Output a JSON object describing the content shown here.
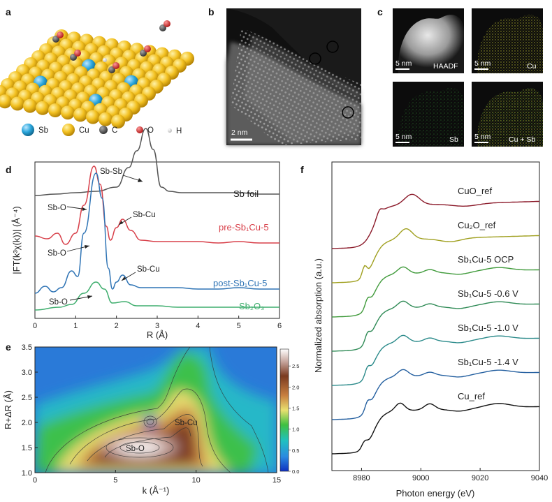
{
  "panel_labels": {
    "a": "a",
    "b": "b",
    "c": "c",
    "d": "d",
    "e": "e",
    "f": "f"
  },
  "panel_a": {
    "legend": [
      {
        "label": "Sb",
        "color": "#2aa6dc"
      },
      {
        "label": "Cu",
        "color": "#f2c020"
      },
      {
        "label": "C",
        "color": "#555555"
      },
      {
        "label": "O",
        "color": "#d8262c"
      },
      {
        "label": "H",
        "color": "#dddddd"
      }
    ]
  },
  "panel_b": {
    "scale_bar": "2 nm"
  },
  "panel_c": {
    "tiles": [
      {
        "scale": "5 nm",
        "label": "HAADF"
      },
      {
        "scale": "5 nm",
        "label": "Cu"
      },
      {
        "scale": "5 nm",
        "label": "Sb"
      },
      {
        "scale": "5 nm",
        "label": "Cu + Sb"
      }
    ]
  },
  "chart_data": [
    {
      "id": "d",
      "type": "line",
      "xlabel": "R (Å)",
      "ylabel": "|FT(k³χ(k))| (Å⁻⁴)",
      "xlim": [
        0,
        6
      ],
      "xticks": [
        0,
        1,
        2,
        3,
        4,
        5,
        6
      ],
      "series": [
        {
          "name": "Sb foil",
          "color": "#555555",
          "offset": 0.8,
          "points": [
            [
              0,
              0.02
            ],
            [
              0.5,
              0.03
            ],
            [
              1.0,
              0.04
            ],
            [
              1.5,
              0.05
            ],
            [
              2.0,
              0.08
            ],
            [
              2.3,
              0.22
            ],
            [
              2.5,
              0.34
            ],
            [
              2.72,
              0.5
            ],
            [
              2.9,
              0.35
            ],
            [
              3.1,
              0.08
            ],
            [
              3.3,
              0.05
            ],
            [
              3.6,
              0.04
            ],
            [
              4.0,
              0.04
            ],
            [
              4.5,
              0.04
            ],
            [
              5.0,
              0.04
            ],
            [
              5.5,
              0.03
            ],
            [
              6.0,
              0.03
            ]
          ]
        },
        {
          "name": "pre-Sb₁Cu-5",
          "color": "#d8404a",
          "offset": 0.45,
          "points": [
            [
              0,
              0.08
            ],
            [
              0.3,
              0.06
            ],
            [
              0.55,
              0.1
            ],
            [
              0.75,
              0.02
            ],
            [
              1.0,
              0.1
            ],
            [
              1.2,
              0.3
            ],
            [
              1.45,
              0.58
            ],
            [
              1.6,
              0.45
            ],
            [
              1.75,
              0.15
            ],
            [
              1.85,
              0.05
            ],
            [
              2.0,
              0.14
            ],
            [
              2.15,
              0.2
            ],
            [
              2.35,
              0.12
            ],
            [
              2.6,
              0.05
            ],
            [
              3.0,
              0.04
            ],
            [
              3.5,
              0.04
            ],
            [
              4.0,
              0.04
            ],
            [
              4.5,
              0.03
            ],
            [
              5.0,
              0.04
            ],
            [
              5.5,
              0.03
            ],
            [
              6.0,
              0.03
            ]
          ]
        },
        {
          "name": "post-Sb₁Cu-5",
          "color": "#2f74b5",
          "offset": 0.1,
          "points": [
            [
              0,
              0.02
            ],
            [
              0.25,
              0.07
            ],
            [
              0.45,
              0.03
            ],
            [
              0.65,
              0.06
            ],
            [
              0.9,
              0.18
            ],
            [
              1.05,
              0.14
            ],
            [
              1.2,
              0.45
            ],
            [
              1.5,
              0.88
            ],
            [
              1.65,
              0.7
            ],
            [
              1.8,
              0.2
            ],
            [
              1.9,
              0.05
            ],
            [
              2.0,
              0.1
            ],
            [
              2.15,
              0.15
            ],
            [
              2.35,
              0.08
            ],
            [
              2.6,
              0.06
            ],
            [
              3.0,
              0.06
            ],
            [
              3.5,
              0.06
            ],
            [
              4.0,
              0.05
            ],
            [
              4.5,
              0.05
            ],
            [
              5.0,
              0.06
            ],
            [
              5.5,
              0.05
            ],
            [
              6.0,
              0.05
            ]
          ]
        },
        {
          "name": "Sb₂O₃",
          "color": "#3fae6e",
          "offset": 0.0,
          "points": [
            [
              0,
              0.0
            ],
            [
              0.6,
              0.02
            ],
            [
              0.9,
              0.04
            ],
            [
              1.2,
              0.12
            ],
            [
              1.5,
              0.2
            ],
            [
              1.7,
              0.15
            ],
            [
              1.9,
              0.05
            ],
            [
              2.2,
              0.06
            ],
            [
              2.5,
              0.03
            ],
            [
              3.0,
              0.03
            ],
            [
              3.5,
              0.02
            ],
            [
              4.0,
              0.02
            ],
            [
              4.5,
              0.02
            ],
            [
              5.0,
              0.02
            ],
            [
              5.5,
              0.02
            ],
            [
              6.0,
              0.02
            ]
          ]
        }
      ],
      "annotations": [
        {
          "text": "Sb-Sb"
        },
        {
          "text": "Sb-O"
        },
        {
          "text": "Sb-Cu"
        },
        {
          "text": "Sb-O"
        },
        {
          "text": "Sb-Cu"
        },
        {
          "text": "Sb-O"
        }
      ]
    },
    {
      "id": "e",
      "type": "heatmap",
      "xlabel": "k (Å⁻¹)",
      "ylabel": "R+ΔR (Å)",
      "xlim": [
        0,
        15
      ],
      "ylim": [
        1.0,
        3.5
      ],
      "xticks": [
        0,
        5,
        10,
        15
      ],
      "yticks": [
        1.0,
        1.5,
        2.0,
        2.5,
        3.0,
        3.5
      ],
      "colorbar_ticks": [
        "0.0",
        "0.5",
        "1.0",
        "1.5",
        "2.0",
        "2.5"
      ],
      "annotations": [
        {
          "text": "Sb-O"
        },
        {
          "text": "Sb-Cu"
        }
      ]
    },
    {
      "id": "f",
      "type": "line",
      "xlabel": "Photon energy (eV)",
      "ylabel": "Normalized absorption (a.u.)",
      "xlim": [
        8970,
        9040
      ],
      "xticks": [
        8980,
        9000,
        9020,
        9040
      ],
      "series": [
        {
          "name": "CuO_ref",
          "color": "#8b1a2a",
          "offset": 6.0
        },
        {
          "name": "Cu₂O_ref",
          "color": "#a0a020",
          "offset": 5.0
        },
        {
          "name": "Sb₁Cu-5 OCP",
          "color": "#3f9a3a",
          "offset": 4.0
        },
        {
          "name": "Sb₁Cu-5 -0.6 V",
          "color": "#2e8a55",
          "offset": 3.0
        },
        {
          "name": "Sb₁Cu-5 -1.0 V",
          "color": "#2a8a8a",
          "offset": 2.0
        },
        {
          "name": "Sb₁Cu-5 -1.4 V",
          "color": "#2560a0",
          "offset": 1.0
        },
        {
          "name": "Cu_ref",
          "color": "#111111",
          "offset": 0.0
        }
      ]
    }
  ]
}
